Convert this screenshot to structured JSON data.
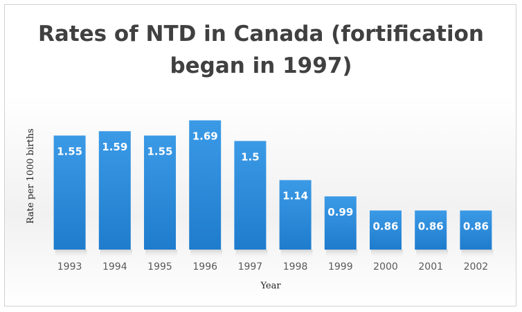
{
  "chart_data": {
    "type": "bar",
    "title_lines": [
      "Rates of NTD in Canada (fortification",
      "began in 1997)"
    ],
    "xlabel": "Year",
    "ylabel": "Rate per 1000 births",
    "categories": [
      "1993",
      "1994",
      "1995",
      "1996",
      "1997",
      "1998",
      "1999",
      "2000",
      "2001",
      "2002"
    ],
    "values": [
      1.55,
      1.59,
      1.55,
      1.69,
      1.5,
      1.14,
      0.99,
      0.86,
      0.86,
      0.86
    ],
    "data_labels": [
      "1.55",
      "1.59",
      "1.55",
      "1.69",
      "1.5",
      "1.14",
      "0.99",
      "0.86",
      "0.86",
      "0.86"
    ],
    "ylim": [
      0.5,
      1.7
    ],
    "grid": false,
    "legend": "none",
    "bar_color": "#2a8ad8"
  }
}
